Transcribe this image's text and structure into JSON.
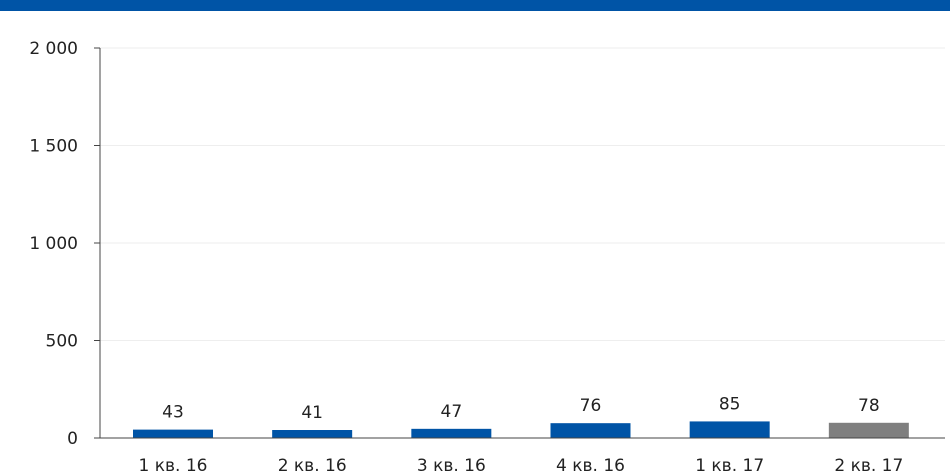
{
  "chart_data": {
    "type": "bar",
    "categories": [
      "1 кв. 16",
      "2 кв. 16",
      "3 кв. 16",
      "4 кв. 16",
      "1 кв. 17",
      "2 кв. 17"
    ],
    "values": [
      43,
      41,
      47,
      76,
      85,
      78
    ],
    "data_labels": [
      "43",
      "41",
      "47",
      "76",
      "85",
      "78"
    ],
    "yticks": [
      0,
      500,
      1000,
      1500,
      2000
    ],
    "ytick_labels": [
      "0",
      "500",
      "1 000",
      "1 500",
      "2 000"
    ],
    "ylim": [
      0,
      2000
    ],
    "grid": true,
    "legend": "none"
  },
  "colors": {
    "header_bar": "#0054a6",
    "bar_primary": "#0054a6",
    "bar_latest": "#7f7f7f",
    "axis": "#444444",
    "grid": "#eeeeee"
  }
}
